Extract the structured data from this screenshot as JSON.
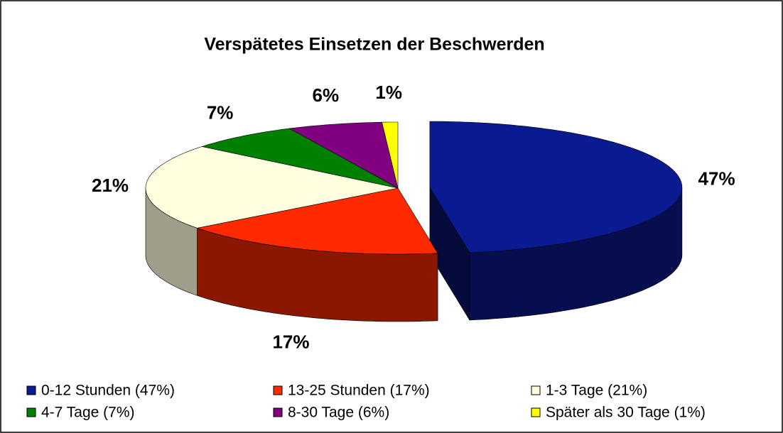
{
  "chart_data": {
    "type": "pie3d",
    "title": "Verspätetes Einsetzen der Beschwerden",
    "categories": [
      "0-12 Stunden (47%)",
      "13-25 Stunden (17%)",
      "1-3 Tage (21%)",
      "4-7 Tage (7%)",
      "8-30 Tage (6%)",
      "Später als 30 Tage (1%)"
    ],
    "values": [
      47,
      17,
      21,
      7,
      6,
      1
    ],
    "value_labels": [
      "47%",
      "17%",
      "21%",
      "7%",
      "6%",
      "1%"
    ],
    "colors": [
      "#0a1a90",
      "#ff2a00",
      "#ffffe0",
      "#008000",
      "#800080",
      "#ffff00"
    ],
    "legend": "bottom"
  }
}
